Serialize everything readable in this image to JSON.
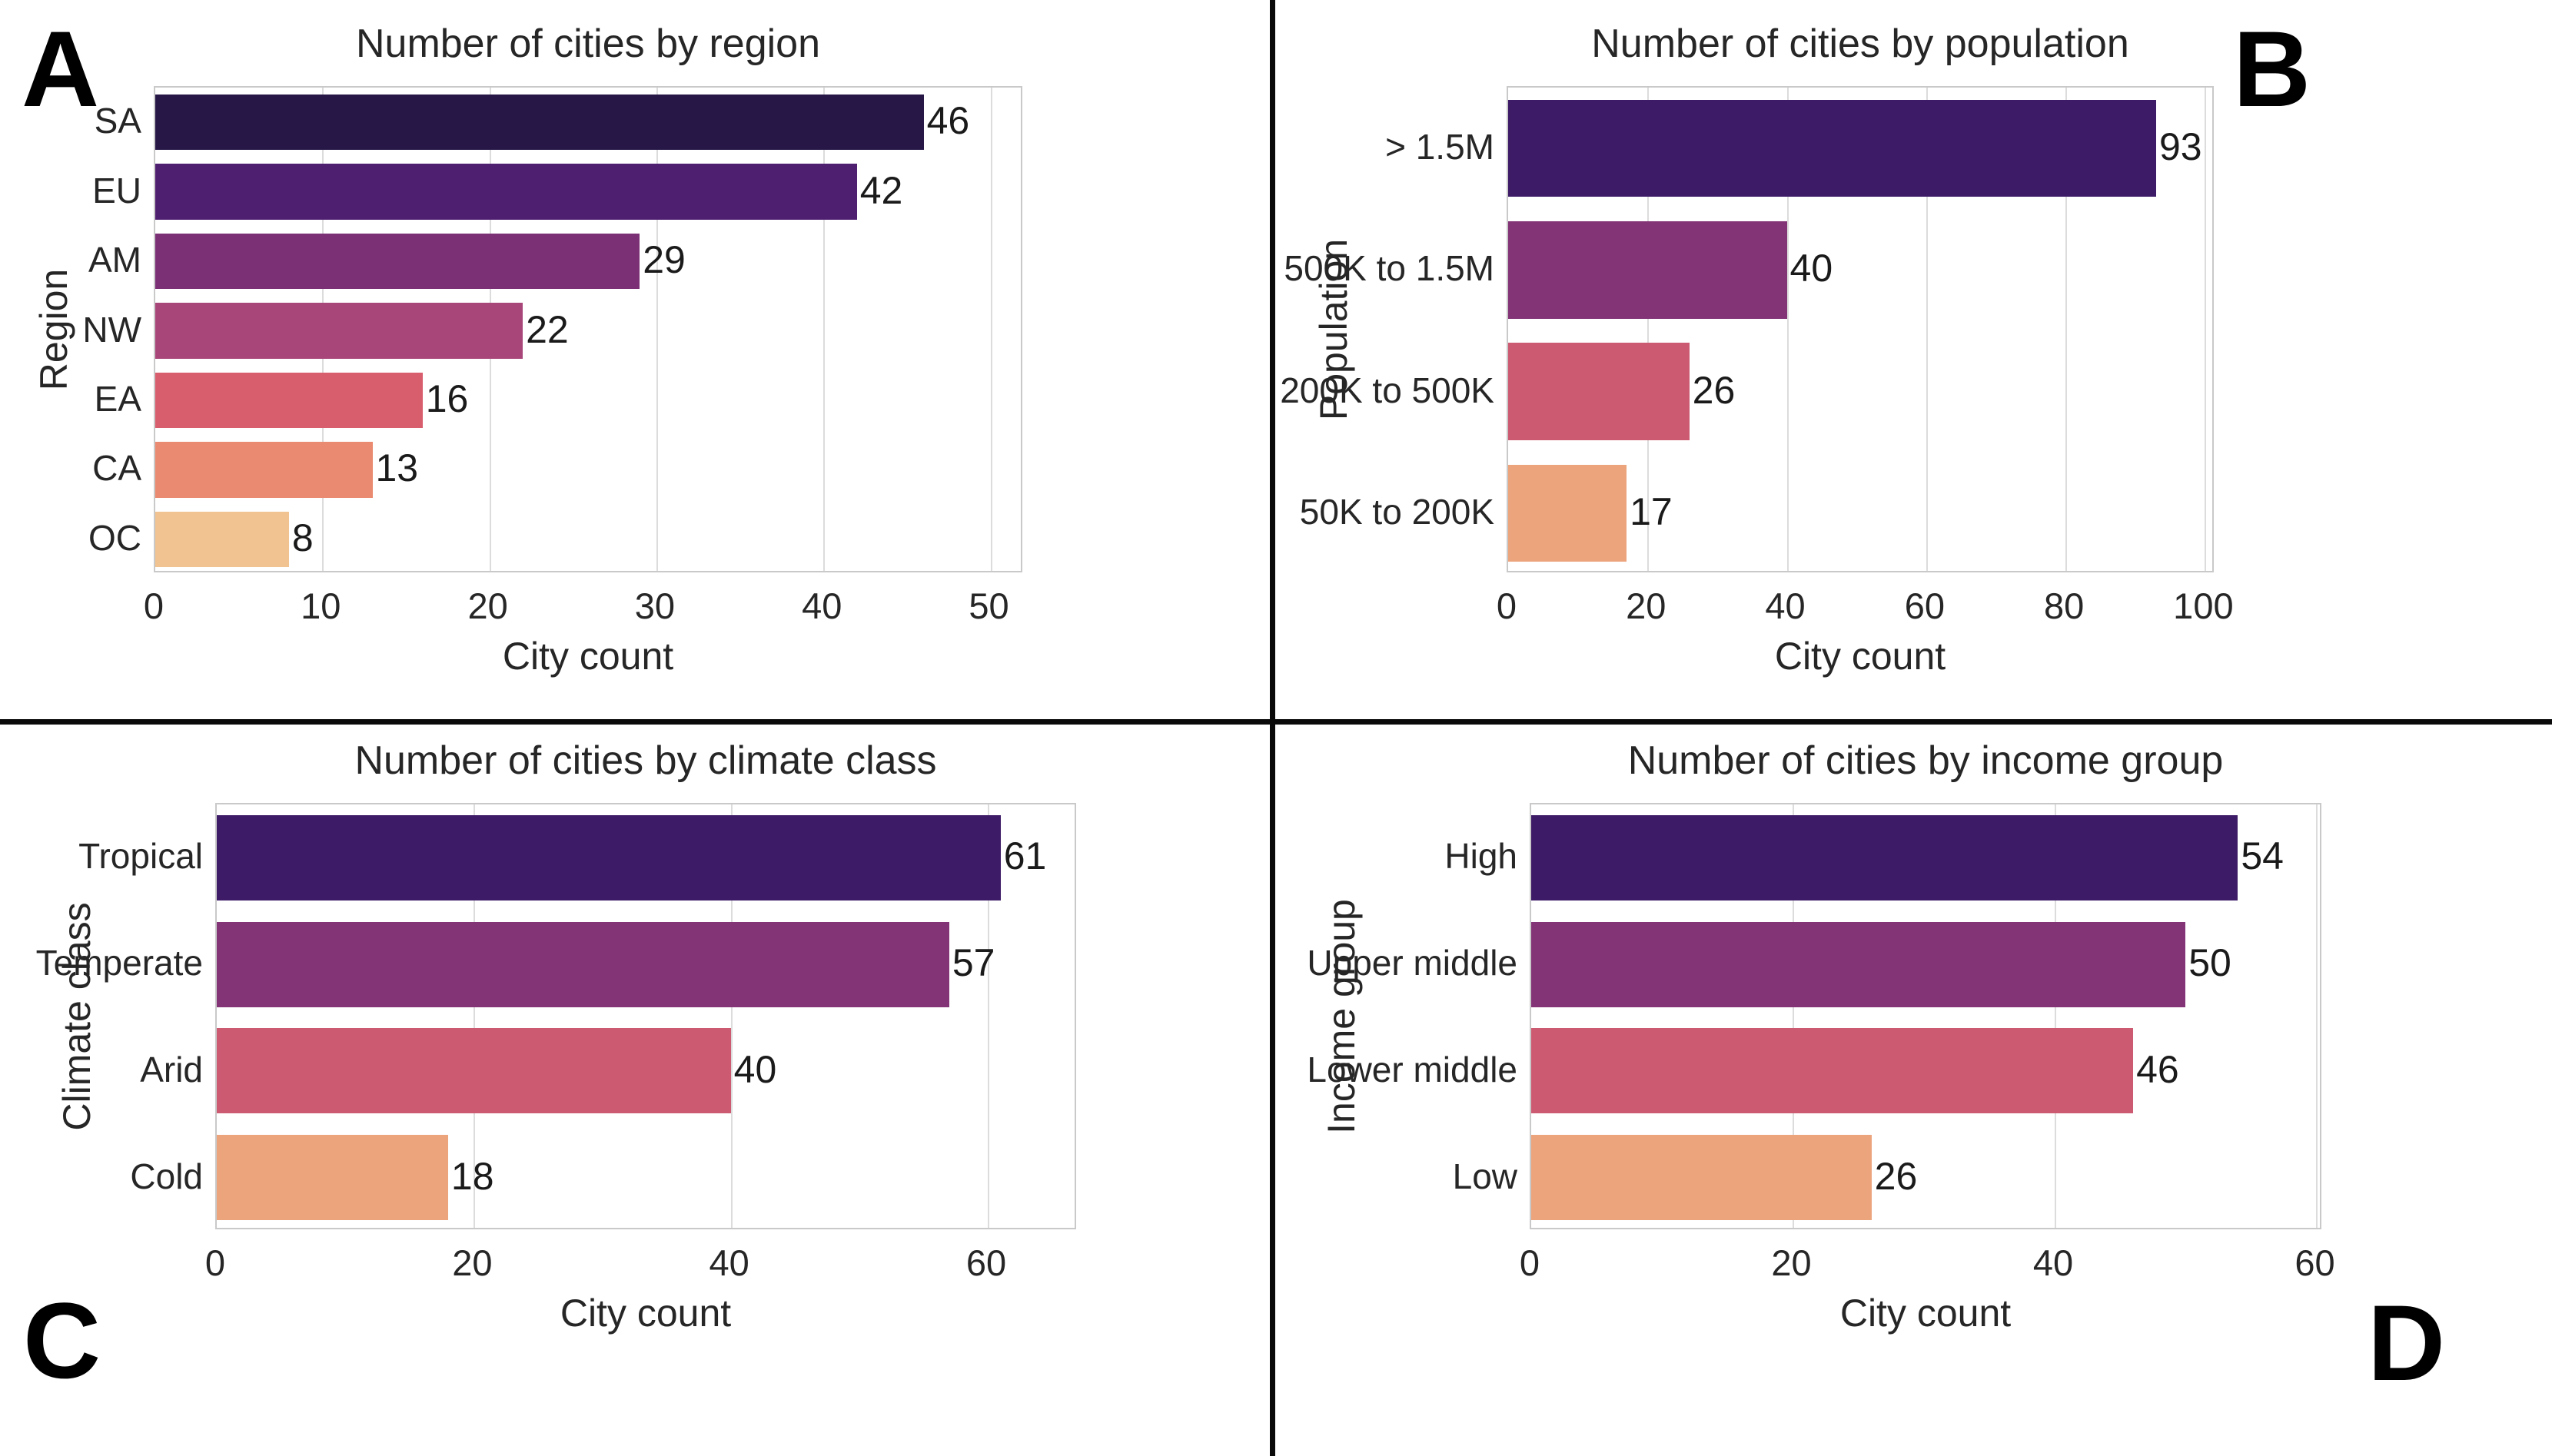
{
  "figure": {
    "background": "#ffffff",
    "divider_color": "#0a0a0a",
    "grid_color": "#dcdcdc",
    "spine_color": "#c9c9c9",
    "text_color": "#262626"
  },
  "chart_data": [
    {
      "type": "bar",
      "orientation": "horizontal",
      "panel_letter": "A",
      "title": "Number of cities by region",
      "xlabel": "City count",
      "ylabel": "Region",
      "categories": [
        "SA",
        "EU",
        "AM",
        "NW",
        "EA",
        "CA",
        "OC"
      ],
      "values": [
        46,
        42,
        29,
        22,
        16,
        13,
        8
      ],
      "colors": [
        "#271747",
        "#4e1e70",
        "#7b3076",
        "#a84679",
        "#d85e6d",
        "#ea8a70",
        "#f0c391"
      ],
      "xticks": [
        0,
        10,
        20,
        30,
        40,
        50
      ],
      "xlim": [
        0,
        52
      ],
      "grid": true,
      "legend": "none"
    },
    {
      "type": "bar",
      "orientation": "horizontal",
      "panel_letter": "B",
      "title": "Number of cities by population",
      "xlabel": "City count",
      "ylabel": "Population",
      "categories": [
        "> 1.5M",
        "500K to 1.5M",
        "200K to 500K",
        "50K to 200K"
      ],
      "values": [
        93,
        40,
        26,
        17
      ],
      "colors": [
        "#3d1b66",
        "#833476",
        "#cc5b72",
        "#eca47d"
      ],
      "xticks": [
        0,
        20,
        40,
        60,
        80,
        100
      ],
      "xlim": [
        0,
        101.5
      ],
      "grid": true,
      "legend": "none"
    },
    {
      "type": "bar",
      "orientation": "horizontal",
      "panel_letter": "C",
      "title": "Number of cities by climate class",
      "xlabel": "City count",
      "ylabel": "Climate class",
      "categories": [
        "Tropical",
        "Temperate",
        "Arid",
        "Cold"
      ],
      "values": [
        61,
        57,
        40,
        18
      ],
      "colors": [
        "#3d1b66",
        "#833476",
        "#cc5b72",
        "#eca47d"
      ],
      "xticks": [
        0,
        20,
        40,
        60
      ],
      "xlim": [
        0,
        67
      ],
      "grid": true,
      "legend": "none"
    },
    {
      "type": "bar",
      "orientation": "horizontal",
      "panel_letter": "D",
      "title": "Number of cities by income group",
      "xlabel": "City count",
      "ylabel": "Income group",
      "categories": [
        "High",
        "Upper middle",
        "Lower middle",
        "Low"
      ],
      "values": [
        54,
        50,
        46,
        26
      ],
      "colors": [
        "#3d1b66",
        "#833476",
        "#cc5b72",
        "#eca47d"
      ],
      "xticks": [
        0,
        20,
        40,
        60
      ],
      "xlim": [
        0,
        60.5
      ],
      "grid": true,
      "legend": "none"
    }
  ]
}
